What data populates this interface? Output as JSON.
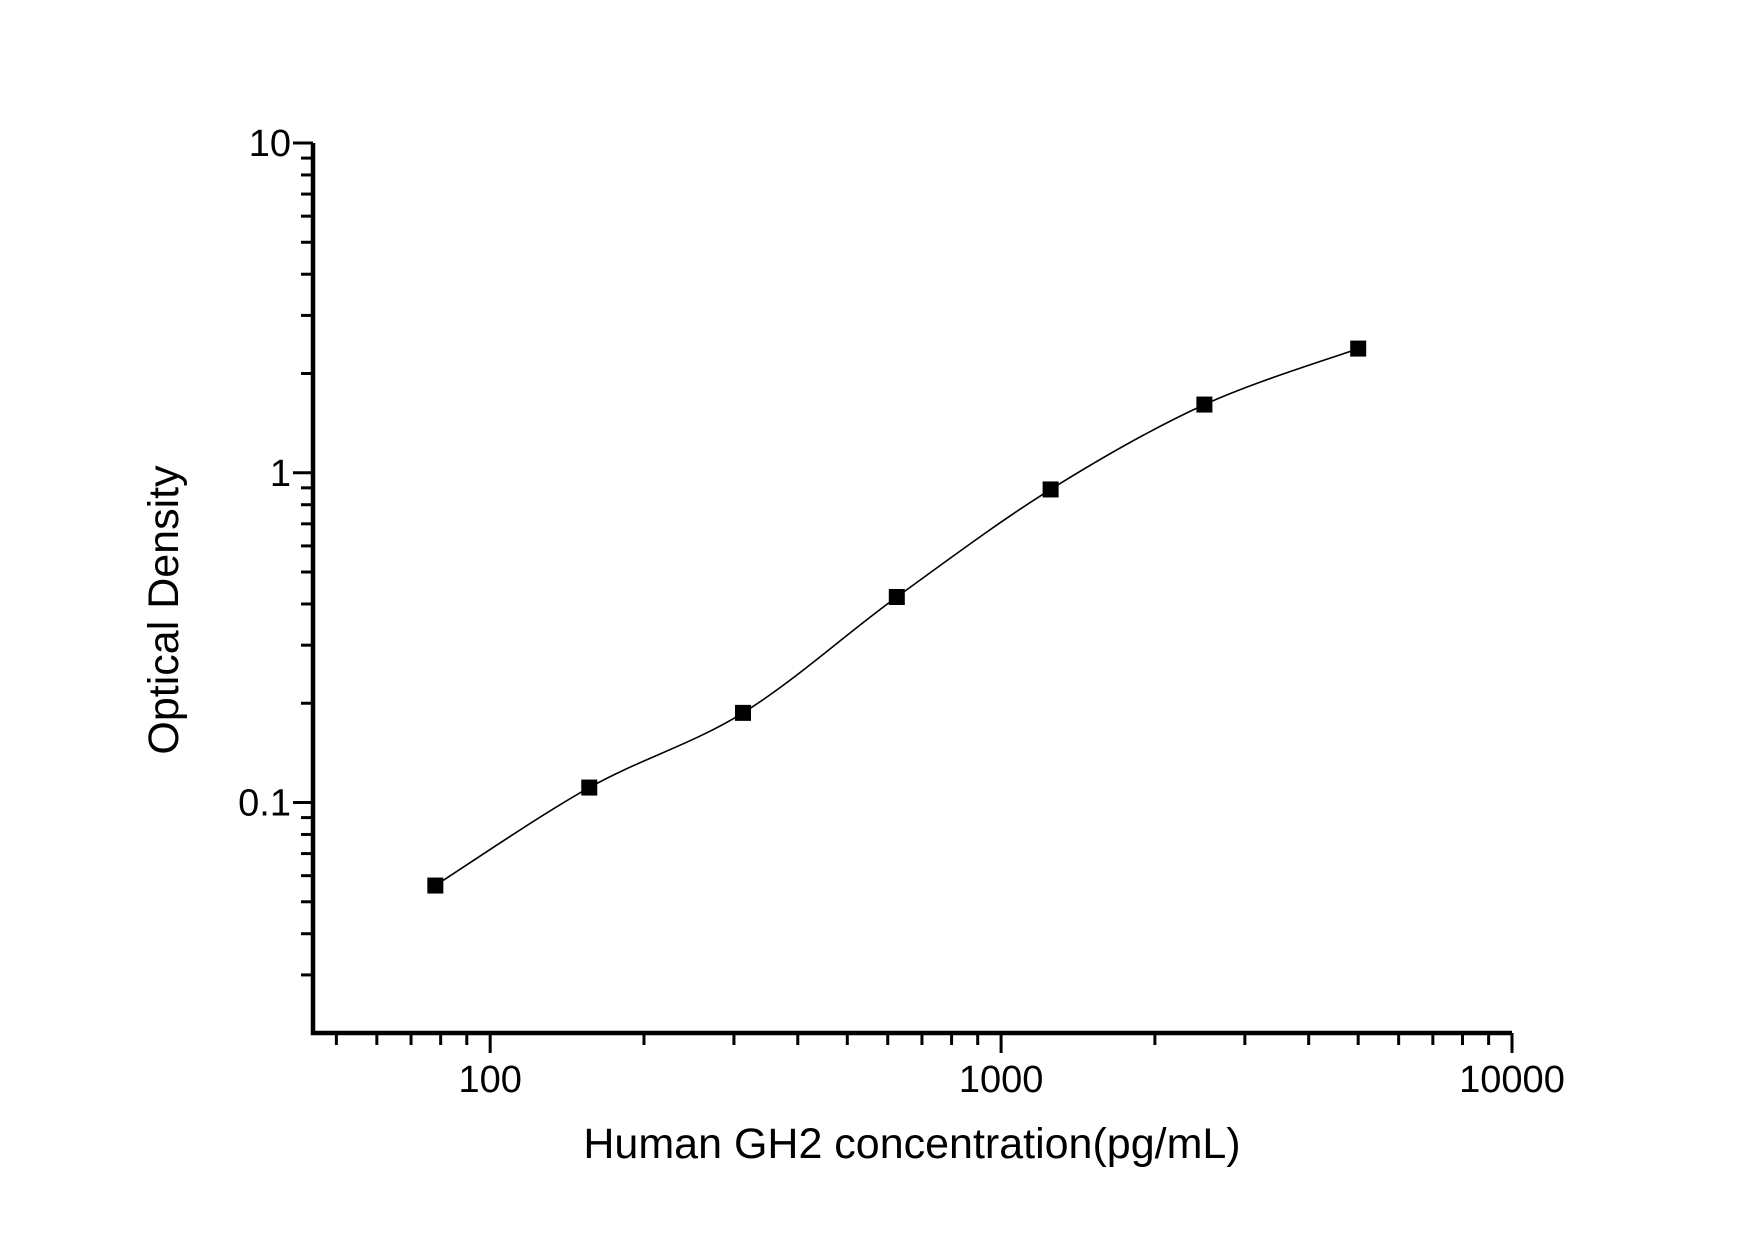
{
  "figure": {
    "background": "#ffffff",
    "foreground": "#000000"
  },
  "chart_data": {
    "type": "scatter",
    "title": "",
    "xlabel": "Human GH2 concentration(pg/mL)",
    "ylabel": "Optical Density",
    "x_scale": "log",
    "y_scale": "log",
    "xlim": [
      45,
      10000
    ],
    "ylim": [
      0.02,
      10
    ],
    "x_major_ticks": [
      100,
      1000,
      10000
    ],
    "x_tick_labels": [
      "100",
      "1000",
      "10000"
    ],
    "y_major_ticks": [
      0.1,
      1,
      10
    ],
    "y_tick_labels": [
      "0.1",
      "1",
      "10"
    ],
    "grid": false,
    "legend": "none",
    "series": [
      {
        "marker": "filled-square",
        "color": "#000000",
        "line": "smooth-fit-curve",
        "x": [
          78.1,
          156.3,
          312.5,
          625,
          1250,
          2500,
          5000
        ],
        "y": [
          0.056,
          0.111,
          0.187,
          0.42,
          0.89,
          1.61,
          2.38
        ]
      }
    ]
  }
}
